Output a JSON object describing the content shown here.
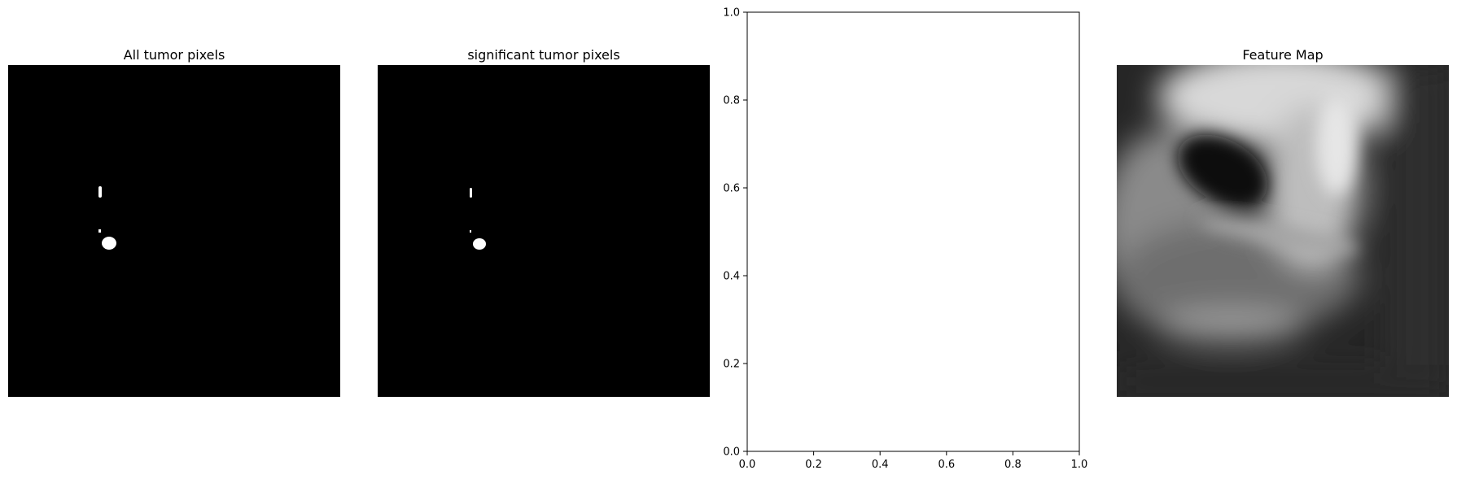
{
  "panels": [
    {
      "title": "All tumor pixels"
    },
    {
      "title": "significant tumor pixels"
    },
    {
      "title": ""
    },
    {
      "title": "Feature Map"
    }
  ],
  "chart_data": {
    "type": "scatter",
    "title": "",
    "xlabel": "",
    "ylabel": "",
    "xlim": [
      0.0,
      1.0
    ],
    "ylim": [
      0.0,
      1.0
    ],
    "xticks": [
      "0.0",
      "0.2",
      "0.4",
      "0.6",
      "0.8",
      "1.0"
    ],
    "yticks": [
      "0.0",
      "0.2",
      "0.4",
      "0.6",
      "0.8",
      "1.0"
    ],
    "series": []
  }
}
